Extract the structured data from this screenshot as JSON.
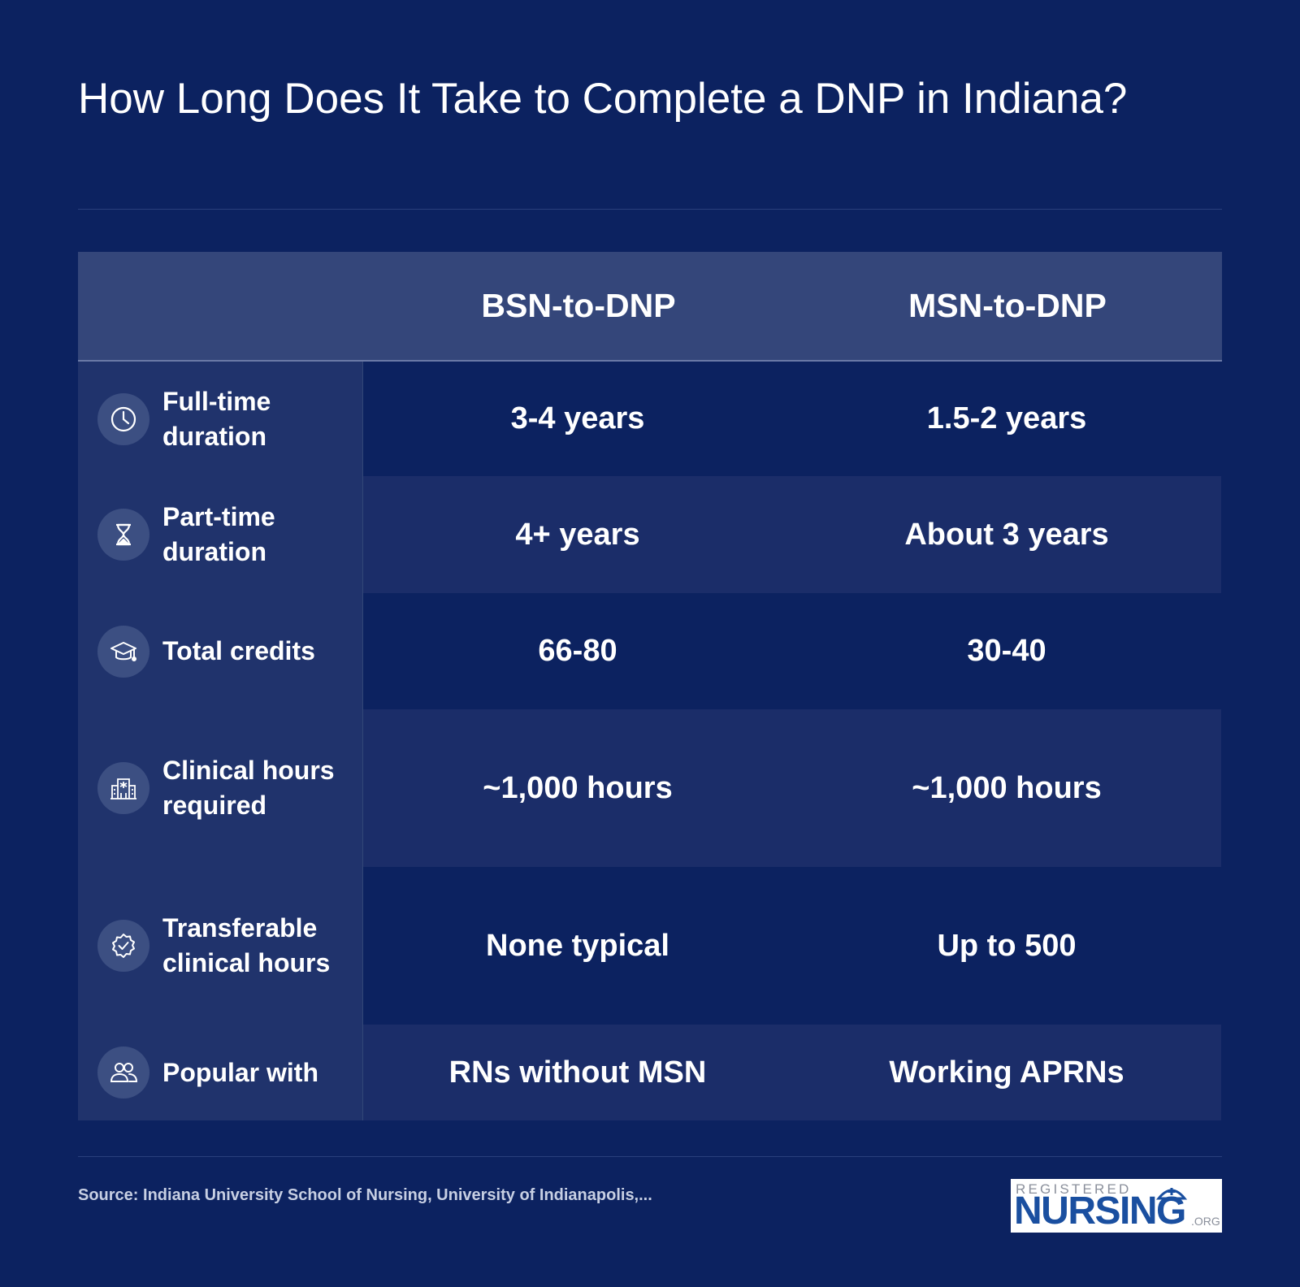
{
  "title": "How Long Does It Take to Complete a DNP in Indiana?",
  "columns": [
    "BSN-to-DNP",
    "MSN-to-DNP"
  ],
  "rows": [
    {
      "label": "Full-time duration",
      "icon": "clock-icon",
      "bsn": "3-4 years",
      "msn": "1.5-2 years"
    },
    {
      "label": "Part-time duration",
      "icon": "hourglass-icon",
      "bsn": "4+ years",
      "msn": "About 3 years"
    },
    {
      "label": "Total credits",
      "icon": "graduation-cap-icon",
      "bsn": "66-80",
      "msn": "30-40"
    },
    {
      "label": "Clinical hours required",
      "icon": "hospital-icon",
      "bsn": "~1,000 hours",
      "msn": "~1,000 hours"
    },
    {
      "label": "Transferable clinical hours",
      "icon": "badge-check-icon",
      "bsn": "None typical",
      "msn": "Up to 500"
    },
    {
      "label": "Popular with",
      "icon": "users-icon",
      "bsn": "RNs without MSN",
      "msn": "Working APRNs"
    }
  ],
  "source": "Source: Indiana University School of Nursing, University of Indianapolis,...",
  "logo": {
    "top_text": "REGISTERED",
    "main_text": "NURSING",
    "suffix": ".ORG"
  },
  "colors": {
    "background": "#0c2260",
    "header": "#34467a",
    "label_col": "#20336c",
    "stripe": "#1b2d69",
    "logo_blue": "#1a4fa0"
  }
}
